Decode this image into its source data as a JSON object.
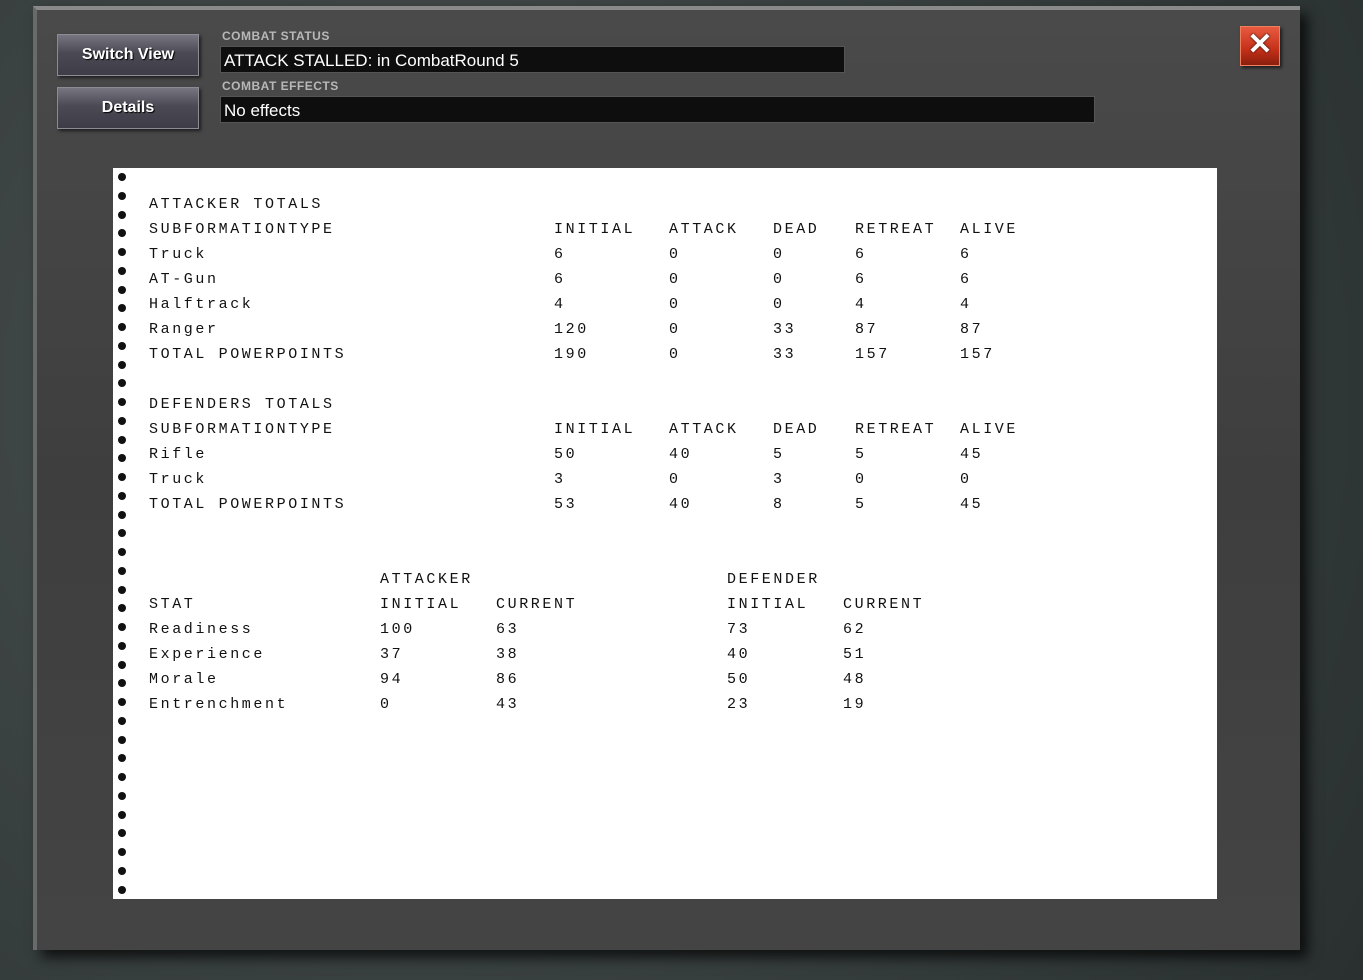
{
  "buttons": {
    "switch_view": "Switch View",
    "details": "Details",
    "close_icon": "close-x-icon"
  },
  "combat_status": {
    "label": "COMBAT STATUS",
    "value": "ATTACK STALLED: in CombatRound  5"
  },
  "combat_effects": {
    "label": "COMBAT EFFECTS",
    "value": "No effects"
  },
  "report": {
    "attacker": {
      "title": "ATTACKER TOTALS",
      "headers": [
        "SUBFORMATIONTYPE",
        "INITIAL",
        "ATTACK",
        "DEAD",
        "RETREAT",
        "ALIVE"
      ],
      "rows": [
        [
          "Truck",
          "6",
          "0",
          "0",
          "6",
          "6"
        ],
        [
          "AT-Gun",
          "6",
          "0",
          "0",
          "6",
          "6"
        ],
        [
          "Halftrack",
          "4",
          "0",
          "0",
          "4",
          "4"
        ],
        [
          "Ranger",
          "120",
          "0",
          "33",
          "87",
          "87"
        ],
        [
          "TOTAL POWERPOINTS",
          "190",
          "0",
          "33",
          "157",
          "157"
        ]
      ]
    },
    "defender": {
      "title": "DEFENDERS TOTALS",
      "headers": [
        "SUBFORMATIONTYPE",
        "INITIAL",
        "ATTACK",
        "DEAD",
        "RETREAT",
        "ALIVE"
      ],
      "rows": [
        [
          "Rifle",
          "50",
          "40",
          "5",
          "5",
          "45"
        ],
        [
          "Truck",
          "3",
          "0",
          "3",
          "0",
          "0"
        ],
        [
          "TOTAL POWERPOINTS",
          "53",
          "40",
          "8",
          "5",
          "45"
        ]
      ]
    },
    "stats": {
      "group_headers": [
        "ATTACKER",
        "DEFENDER"
      ],
      "headers": [
        "STAT",
        "INITIAL",
        "CURRENT",
        "INITIAL",
        "CURRENT"
      ],
      "rows": [
        [
          "Readiness",
          "100",
          "63",
          "73",
          "62"
        ],
        [
          "Experience",
          "37",
          "38",
          "40",
          "51"
        ],
        [
          "Morale",
          "94",
          "86",
          "50",
          "48"
        ],
        [
          "Entrenchment",
          "0",
          "43",
          "23",
          "19"
        ]
      ]
    }
  }
}
